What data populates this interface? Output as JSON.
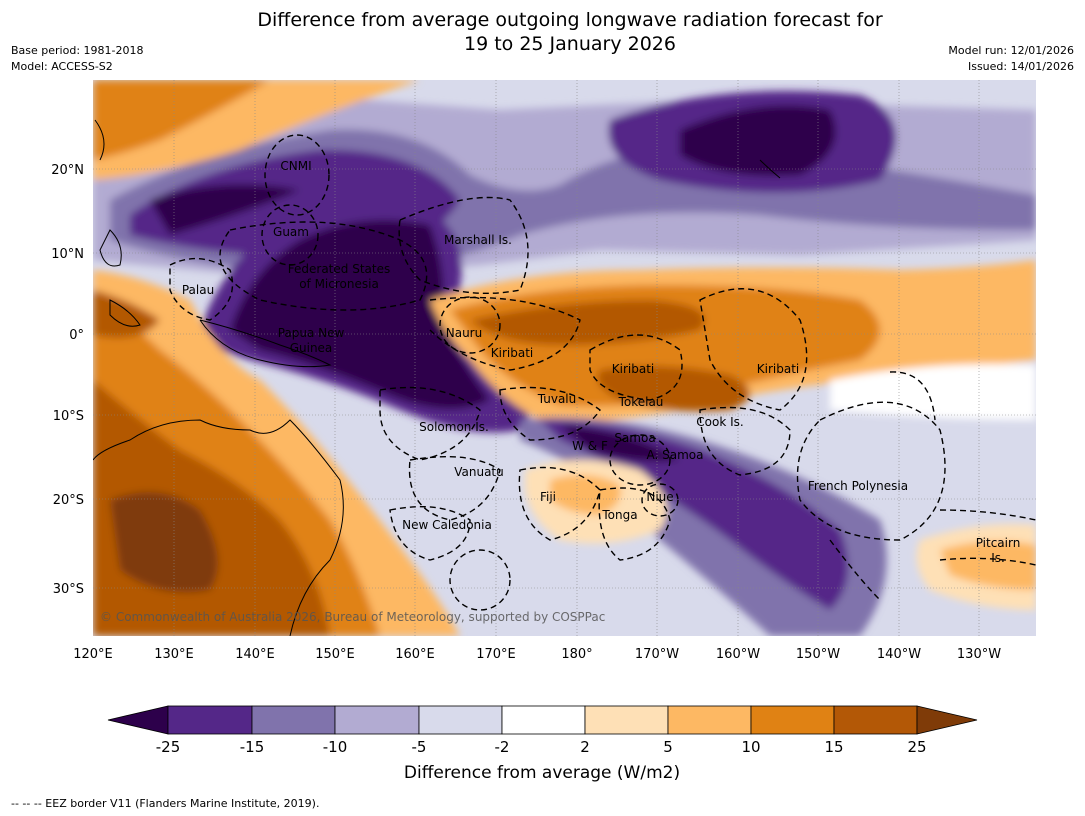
{
  "header": {
    "title_line1": "Difference from average outgoing longwave radiation forecast for",
    "title_line2": "19 to 25 January 2026",
    "base_period": "Base period: 1981-2018",
    "model": "Model: ACCESS-S2",
    "model_run": "Model run: 12/01/2026",
    "issued": "Issued: 14/01/2026"
  },
  "axes": {
    "lon_labels": [
      "120°E",
      "130°E",
      "140°E",
      "150°E",
      "160°E",
      "170°E",
      "180°",
      "170°W",
      "160°W",
      "150°W",
      "140°W",
      "130°W"
    ],
    "lat_labels": [
      "20°N",
      "10°N",
      "0°",
      "10°S",
      "20°S",
      "30°S"
    ]
  },
  "regions": [
    "CNMI",
    "Guam",
    "Marshall Is.",
    "Federated States",
    "of Micronesia",
    "Palau",
    "Papua New",
    "Guinea",
    "Nauru",
    "Kiribati",
    "Kiribati",
    "Kiribati",
    "Tuvalu",
    "Tokelau",
    "Cook Is.",
    "Solomon Is.",
    "Samoa",
    "W & F",
    "A. Samoa",
    "Vanuatu",
    "Fiji",
    "Niue",
    "French Polynesia",
    "Tonga",
    "New Caledonia",
    "Pitcairn",
    "Is."
  ],
  "copyright": "© Commonwealth of Australia 2026, Bureau of Meteorology, supported by COSPPac",
  "colorbar": {
    "title": "Difference from average (W/m2)",
    "ticks": [
      "-25",
      "-15",
      "-10",
      "-5",
      "-2",
      "2",
      "5",
      "10",
      "15",
      "25"
    ],
    "colors": [
      "#2d004b",
      "#542788",
      "#8073ac",
      "#b2abd2",
      "#d8daeb",
      "#ffffff",
      "#fee0b6",
      "#fdb863",
      "#e08214",
      "#b35806",
      "#7f3b08"
    ]
  },
  "footer": {
    "eez_note": "--  --  -- EEZ border V11 (Flanders Marine Institute, 2019)."
  }
}
